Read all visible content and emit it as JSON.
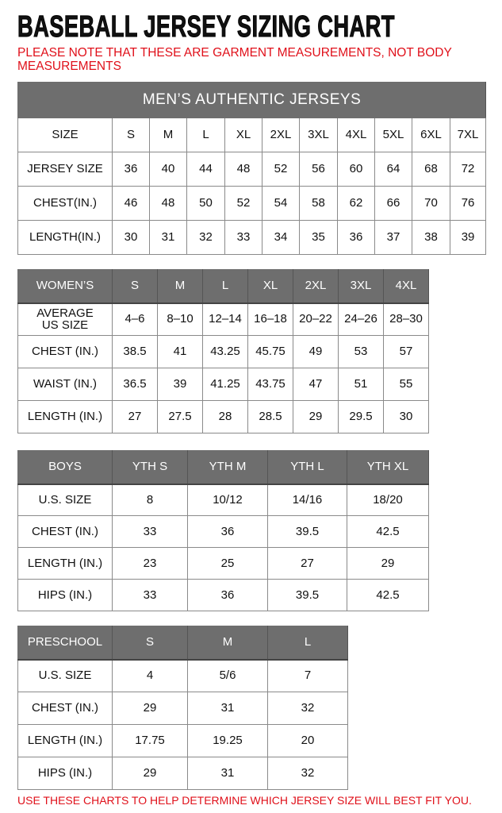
{
  "title": "BASEBALL JERSEY SIZING CHART",
  "note": "PLEASE NOTE THAT THESE ARE GARMENT MEASUREMENTS, NOT BODY MEASUREMENTS",
  "footer": "USE THESE CHARTS TO HELP DETERMINE WHICH JERSEY SIZE WILL BEST FIT YOU.",
  "colors": {
    "header_bg": "#6e6e6e",
    "note_red": "#e0101a"
  },
  "tables": [
    {
      "key": "mens",
      "band": "MEN’S AUTHENTIC JERSEYS",
      "header_style": "plain",
      "header": [
        "SIZE",
        "S",
        "M",
        "L",
        "XL",
        "2XL",
        "3XL",
        "4XL",
        "5XL",
        "6XL",
        "7XL"
      ],
      "rows": [
        [
          "JERSEY SIZE",
          "36",
          "40",
          "44",
          "48",
          "52",
          "56",
          "60",
          "64",
          "68",
          "72"
        ],
        [
          "CHEST(IN.)",
          "46",
          "48",
          "50",
          "52",
          "54",
          "58",
          "62",
          "66",
          "70",
          "76"
        ],
        [
          "LENGTH(IN.)",
          "30",
          "31",
          "32",
          "33",
          "34",
          "35",
          "36",
          "37",
          "38",
          "39"
        ]
      ]
    },
    {
      "key": "womens",
      "header_style": "gray",
      "header": [
        "WOMEN’S",
        "S",
        "M",
        "L",
        "XL",
        "2XL",
        "3XL",
        "4XL"
      ],
      "rows": [
        [
          "AVERAGE US SIZE",
          "4–6",
          "8–10",
          "12–14",
          "16–18",
          "20–22",
          "24–26",
          "28–30"
        ],
        [
          "CHEST (IN.)",
          "38.5",
          "41",
          "43.25",
          "45.75",
          "49",
          "53",
          "57"
        ],
        [
          "WAIST (IN.)",
          "36.5",
          "39",
          "41.25",
          "43.75",
          "47",
          "51",
          "55"
        ],
        [
          "LENGTH (IN.)",
          "27",
          "27.5",
          "28",
          "28.5",
          "29",
          "29.5",
          "30"
        ]
      ]
    },
    {
      "key": "boys",
      "header_style": "gray",
      "header": [
        "BOYS",
        "YTH S",
        "YTH M",
        "YTH L",
        "YTH XL"
      ],
      "rows": [
        [
          "U.S. SIZE",
          "8",
          "10/12",
          "14/16",
          "18/20"
        ],
        [
          "CHEST (IN.)",
          "33",
          "36",
          "39.5",
          "42.5"
        ],
        [
          "LENGTH (IN.)",
          "23",
          "25",
          "27",
          "29"
        ],
        [
          "HIPS (IN.)",
          "33",
          "36",
          "39.5",
          "42.5"
        ]
      ]
    },
    {
      "key": "preschool",
      "header_style": "gray",
      "header": [
        "PRESCHOOL",
        "S",
        "M",
        "L"
      ],
      "rows": [
        [
          "U.S. SIZE",
          "4",
          "5/6",
          "7"
        ],
        [
          "CHEST (IN.)",
          "29",
          "31",
          "32"
        ],
        [
          "LENGTH (IN.)",
          "17.75",
          "19.25",
          "20"
        ],
        [
          "HIPS (IN.)",
          "29",
          "31",
          "32"
        ]
      ]
    }
  ]
}
